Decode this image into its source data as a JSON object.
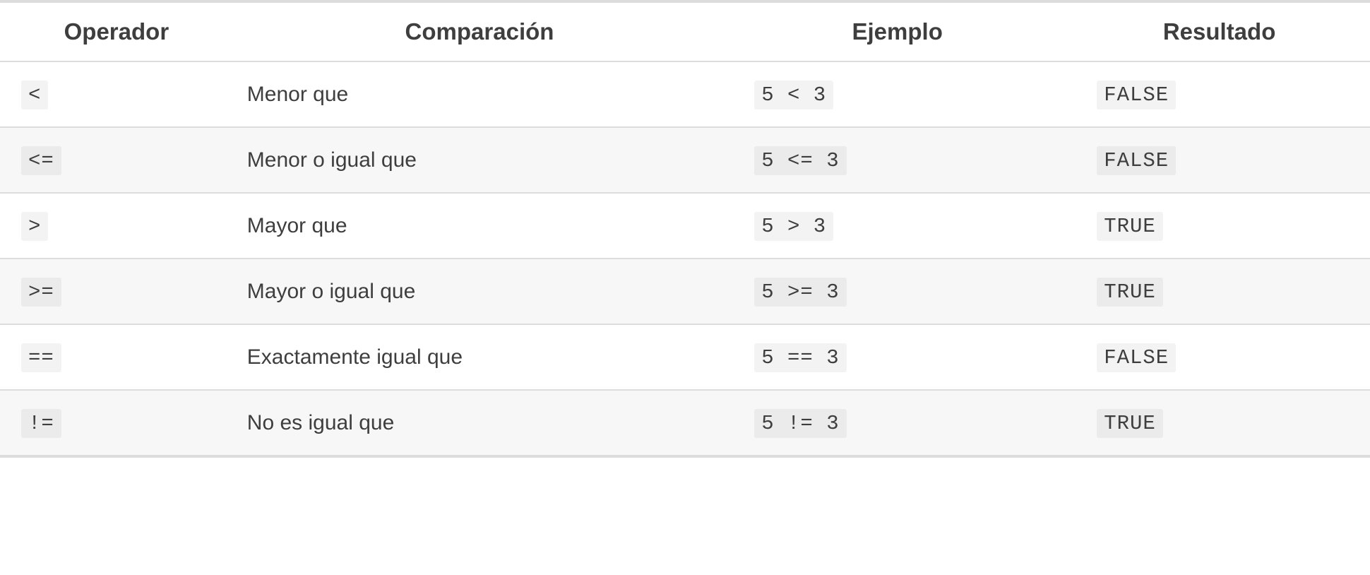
{
  "table": {
    "columns": [
      "Operador",
      "Comparación",
      "Ejemplo",
      "Resultado"
    ],
    "rows": [
      {
        "operator": "<",
        "comparison": "Menor que",
        "example": "5 < 3",
        "result": "FALSE"
      },
      {
        "operator": "<=",
        "comparison": "Menor o igual que",
        "example": "5 <= 3",
        "result": "FALSE"
      },
      {
        "operator": ">",
        "comparison": "Mayor que",
        "example": "5 > 3",
        "result": "TRUE"
      },
      {
        "operator": ">=",
        "comparison": "Mayor o igual que",
        "example": "5 >= 3",
        "result": "TRUE"
      },
      {
        "operator": "==",
        "comparison": "Exactamente igual que",
        "example": "5 == 3",
        "result": "FALSE"
      },
      {
        "operator": "!=",
        "comparison": "No es igual que",
        "example": "5 != 3",
        "result": "TRUE"
      }
    ],
    "style": {
      "font_family": "-apple-system, Helvetica Neue, Arial, sans-serif",
      "code_font_family": "Consolas, Menlo, Monaco, monospace",
      "header_font_size": 33,
      "body_font_size": 30,
      "code_font_size": 29,
      "text_color": "#3e3e3e",
      "border_color": "#dcdcdc",
      "stripe_bg": "#f7f7f7",
      "code_bg": "#f3f3f3",
      "code_bg_stripe": "#ebebeb",
      "background_color": "#ffffff",
      "top_border_width": 4,
      "row_border_width": 2,
      "bottom_border_width": 4,
      "column_widths_pct": [
        17,
        36,
        25,
        22
      ]
    }
  }
}
